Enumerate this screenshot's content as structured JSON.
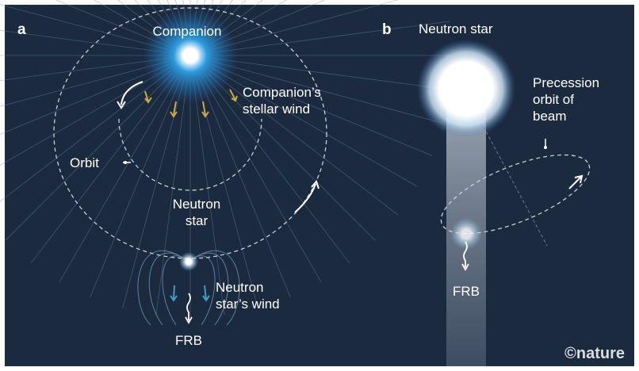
{
  "panel_a": {
    "letter": "a",
    "companion": "Companion",
    "stellar_wind": [
      "Companion’s",
      "stellar wind"
    ],
    "orbit": "Orbit",
    "neutron_star": [
      "Neutron",
      "star"
    ],
    "neutron_wind": [
      "Neutron",
      "star’s wind"
    ],
    "frb": "FRB"
  },
  "panel_b": {
    "letter": "b",
    "neutron_star": "Neutron star",
    "precession": [
      "Precession",
      "orbit of",
      "beam"
    ],
    "frb": "FRB"
  },
  "credit": "©nature"
}
